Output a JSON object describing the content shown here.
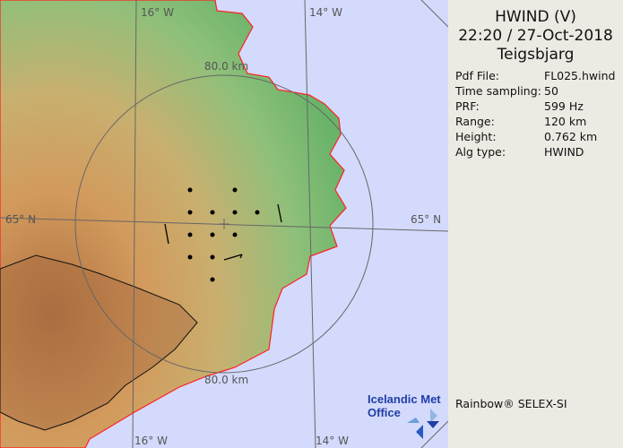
{
  "product": {
    "title": "HWIND (V)",
    "datetime": "22:20 / 27-Oct-2018",
    "station": "Teigsbjarg"
  },
  "params": [
    {
      "label": "Pdf File:",
      "value": "FL025.hwind"
    },
    {
      "label": "Time sampling:",
      "value": "50"
    },
    {
      "label": "PRF:",
      "value": "599 Hz"
    },
    {
      "label": "Range:",
      "value": "120 km"
    },
    {
      "label": "Height:",
      "value": "0.762 km"
    },
    {
      "label": "Alg type:",
      "value": "HWIND"
    }
  ],
  "credit": "Rainbow® SELEX-SI",
  "logo": {
    "line1": "Icelandic Met",
    "line2": "Office"
  },
  "map": {
    "graticule_labels": {
      "lon_top_left": "16° W",
      "lon_top_right": "14° W",
      "lon_bottom_left": "16° W",
      "lon_bottom_right": "14° W",
      "lat_left": "65° N",
      "lat_right": "65° N"
    },
    "range_labels": {
      "top": "80.0 km",
      "bottom": "80.0 km"
    },
    "colors": {
      "sea": "#d4dafc",
      "coast_east": "#ff2020",
      "lowland": "#6fb56a",
      "highland": "#d8a060"
    }
  }
}
